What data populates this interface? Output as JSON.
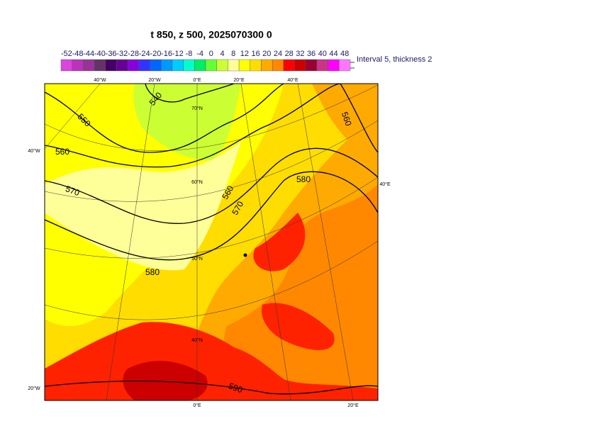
{
  "title": "t 850, z 500, 2025070300 0",
  "colorbar": {
    "labels": [
      -52,
      -48,
      -44,
      -40,
      -36,
      -32,
      -28,
      -24,
      -20,
      -16,
      -12,
      -8,
      -4,
      0,
      4,
      8,
      12,
      16,
      20,
      24,
      28,
      32,
      36,
      40,
      44,
      48
    ],
    "colors": [
      "#dd44dd",
      "#bb33bb",
      "#993399",
      "#663366",
      "#440066",
      "#660099",
      "#8800dd",
      "#3333ff",
      "#0066ff",
      "#0099ff",
      "#00ccff",
      "#00ffcc",
      "#00ee66",
      "#66ff33",
      "#ccff33",
      "#ffff99",
      "#ffff00",
      "#ffdd00",
      "#ffaa00",
      "#ff8800",
      "#ff0000",
      "#cc0000",
      "#990033",
      "#cc3388",
      "#ff00ff",
      "#ff77ff"
    ]
  },
  "interval_note": "Interval 5, thickness 2",
  "map": {
    "graticule_labels": [
      "40°W",
      "20°W",
      "0°E",
      "20°E",
      "40°E",
      "70°N",
      "60°N",
      "50°N",
      "40°N",
      "40°W",
      "20°W",
      "40°E",
      "0°E",
      "20°E"
    ],
    "contour_labels": [
      540,
      550,
      560,
      570,
      580,
      560,
      570,
      580,
      560,
      590
    ]
  }
}
